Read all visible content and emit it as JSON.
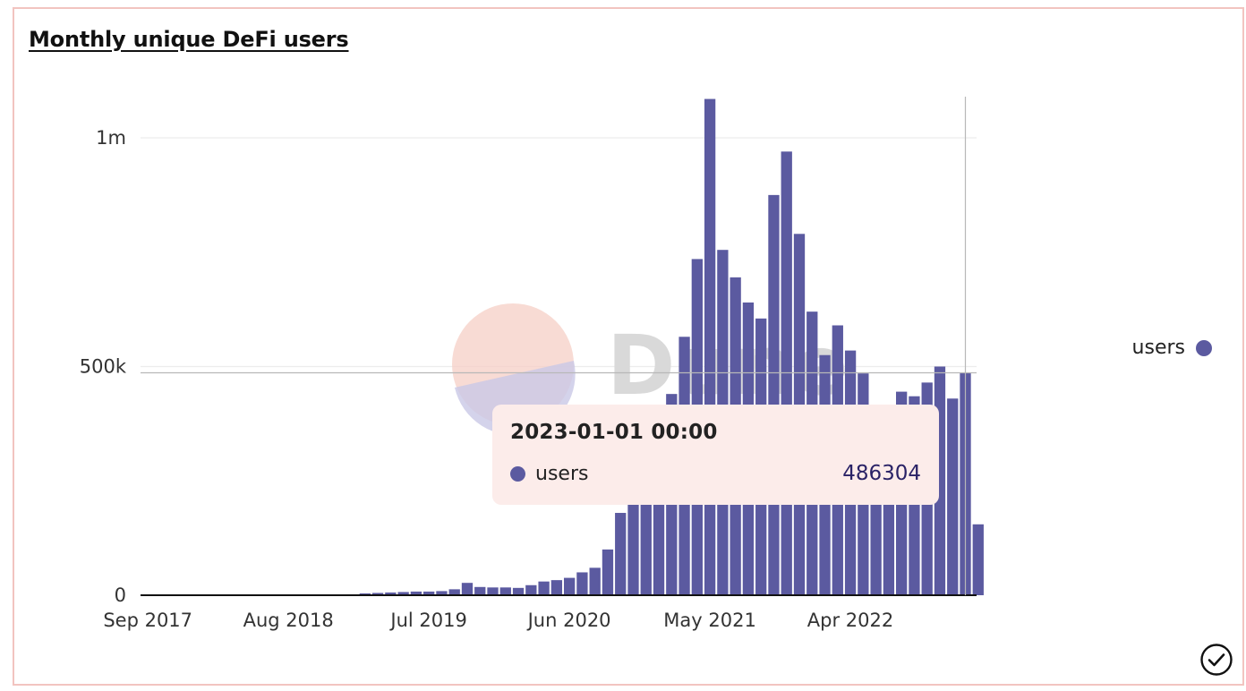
{
  "title": "Monthly unique DeFi users",
  "watermark": "Dune",
  "colors": {
    "bar": "#5b5aa0",
    "border": "#f2c4c0",
    "tooltip_bg": "#fcecea",
    "tooltip_value": "#2a2266"
  },
  "legend": {
    "label": "users"
  },
  "tooltip": {
    "date": "2023-01-01 00:00",
    "series": "users",
    "value": "486304"
  },
  "icons": {
    "status": "check-circle-icon"
  },
  "chart_data": {
    "type": "bar",
    "series": [
      {
        "name": "users"
      }
    ],
    "x_start": "2017-09",
    "x_tick_labels": [
      "Sep 2017",
      "Aug 2018",
      "Jul 2019",
      "Jun 2020",
      "May 2021",
      "Apr 2022"
    ],
    "y_tick_labels": [
      "0",
      "500k",
      "1m"
    ],
    "y_ticks": [
      0,
      500000,
      1000000
    ],
    "ylim": [
      0,
      1090000
    ],
    "highlight": {
      "x": "2023-01",
      "y": 486304
    },
    "points": [
      [
        "2017-09",
        100
      ],
      [
        "2017-10",
        150
      ],
      [
        "2017-11",
        200
      ],
      [
        "2017-12",
        300
      ],
      [
        "2018-01",
        400
      ],
      [
        "2018-02",
        400
      ],
      [
        "2018-03",
        400
      ],
      [
        "2018-04",
        500
      ],
      [
        "2018-05",
        500
      ],
      [
        "2018-06",
        600
      ],
      [
        "2018-07",
        700
      ],
      [
        "2018-08",
        800
      ],
      [
        "2018-09",
        900
      ],
      [
        "2018-10",
        1000
      ],
      [
        "2018-11",
        1200
      ],
      [
        "2018-12",
        1500
      ],
      [
        "2019-01",
        2000
      ],
      [
        "2019-02",
        4000
      ],
      [
        "2019-03",
        5000
      ],
      [
        "2019-04",
        6000
      ],
      [
        "2019-05",
        7000
      ],
      [
        "2019-06",
        8000
      ],
      [
        "2019-07",
        8000
      ],
      [
        "2019-08",
        9000
      ],
      [
        "2019-09",
        13000
      ],
      [
        "2019-10",
        27000
      ],
      [
        "2019-11",
        18000
      ],
      [
        "2019-12",
        17000
      ],
      [
        "2020-01",
        17000
      ],
      [
        "2020-02",
        16000
      ],
      [
        "2020-03",
        22000
      ],
      [
        "2020-04",
        30000
      ],
      [
        "2020-05",
        33000
      ],
      [
        "2020-06",
        38000
      ],
      [
        "2020-07",
        50000
      ],
      [
        "2020-08",
        60000
      ],
      [
        "2020-09",
        100000
      ],
      [
        "2020-10",
        180000
      ],
      [
        "2020-11",
        220000
      ],
      [
        "2020-12",
        260000
      ],
      [
        "2021-01",
        330000
      ],
      [
        "2021-02",
        440000
      ],
      [
        "2021-03",
        565000
      ],
      [
        "2021-04",
        735000
      ],
      [
        "2021-05",
        1085000
      ],
      [
        "2021-06",
        755000
      ],
      [
        "2021-07",
        695000
      ],
      [
        "2021-08",
        640000
      ],
      [
        "2021-09",
        605000
      ],
      [
        "2021-10",
        875000
      ],
      [
        "2021-11",
        970000
      ],
      [
        "2021-12",
        790000
      ],
      [
        "2022-01",
        620000
      ],
      [
        "2022-02",
        525000
      ],
      [
        "2022-03",
        590000
      ],
      [
        "2022-04",
        535000
      ],
      [
        "2022-05",
        485000
      ],
      [
        "2022-06",
        400000
      ],
      [
        "2022-07",
        360000
      ],
      [
        "2022-08",
        445000
      ],
      [
        "2022-09",
        435000
      ],
      [
        "2022-10",
        465000
      ],
      [
        "2022-11",
        500000
      ],
      [
        "2022-12",
        430000
      ],
      [
        "2023-01",
        486304
      ],
      [
        "2023-02",
        155000
      ]
    ]
  }
}
